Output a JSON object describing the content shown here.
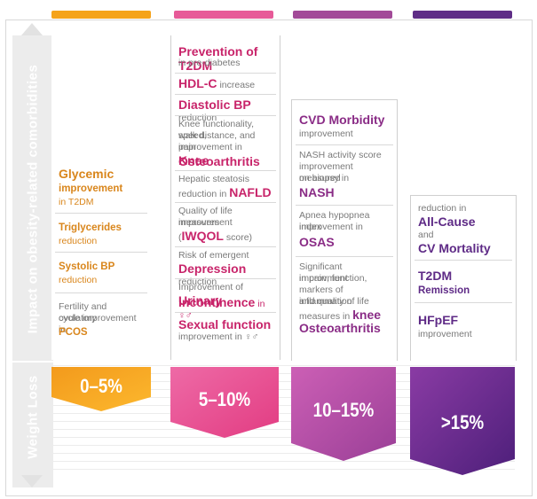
{
  "sidebar": {
    "impact_label": "Impact on obesity-related comorbidities",
    "weight_loss_label": "Weight Loss"
  },
  "colors": {
    "orange": "#f5a31a",
    "pink": "#e44c90",
    "magenta": "#a6499b",
    "purple": "#5e2d86"
  },
  "columns": [
    {
      "range": "0–5%",
      "items": [
        {
          "pre": "",
          "bold": "Glycemic",
          "post": ""
        },
        {
          "pre": "",
          "bold": "improvement",
          "post": ""
        },
        {
          "pre": "",
          "bold": "",
          "post": "in T2DM"
        },
        {
          "pre": "",
          "bold": "Triglycerides",
          "post": ""
        },
        {
          "pre": "",
          "bold": "",
          "post": "reduction"
        },
        {
          "pre": "",
          "bold": "Systolic BP",
          "post": ""
        },
        {
          "pre": "",
          "bold": "",
          "post": "reduction"
        },
        {
          "pre": "Fertility and ovulatory",
          "bold": "",
          "post": ""
        },
        {
          "pre": "cycle improvement in",
          "bold": "",
          "post": ""
        },
        {
          "pre": "",
          "bold": "PCOS",
          "post": ""
        }
      ]
    },
    {
      "range": "5–10%",
      "items": [
        {
          "bold": "Prevention of T2DM"
        },
        {
          "post": "in pre-diabetes"
        },
        {
          "bold": "HDL-C",
          "post": " increase"
        },
        {
          "bold": "Diastolic BP",
          "post": " reduction"
        },
        {
          "pre": "Knee functionality, speed,"
        },
        {
          "pre": "walk distance, and pain"
        },
        {
          "pre": "improvement in ",
          "bold": "Knee"
        },
        {
          "bold": "Osteoarthritis"
        },
        {
          "pre": "Hepatic steatosis"
        },
        {
          "pre": "reduction in ",
          "bold": "NAFLD"
        },
        {
          "pre": "Quality of life measures"
        },
        {
          "pre": "improvement"
        },
        {
          "pre": "(",
          "bold": "IWQOL",
          "post": " score)"
        },
        {
          "pre": "Risk of emergent"
        },
        {
          "bold": "Depression",
          "post": " reduction"
        },
        {
          "pre": "Improvement of ",
          "bold": "Urinary"
        },
        {
          "bold": "incontinence",
          "post": " in ♀♂"
        },
        {
          "bold": "Sexual function"
        },
        {
          "pre": "improvement in ♀♂"
        }
      ]
    },
    {
      "range": "10–15%",
      "items": [
        {
          "bold": "CVD Morbidity"
        },
        {
          "post": "improvement"
        },
        {
          "pre": "NASH activity score"
        },
        {
          "pre": "improvement measured"
        },
        {
          "pre": "on biopsy in"
        },
        {
          "bold": "NASH"
        },
        {
          "pre": "Apnea hypopnea index"
        },
        {
          "pre": "improvement in"
        },
        {
          "bold": "OSAS"
        },
        {
          "pre": "Significant improvment"
        },
        {
          "pre": "in pain, function,"
        },
        {
          "pre": "markers of inflammation"
        },
        {
          "pre": "and quality of life"
        },
        {
          "pre": "measures in ",
          "bold": "knee"
        },
        {
          "bold": "Osteoarthritis"
        }
      ]
    },
    {
      "range": ">15%",
      "items": [
        {
          "pre": "reduction in"
        },
        {
          "bold": "All-Cause"
        },
        {
          "pre": "and"
        },
        {
          "bold": "CV Mortality"
        },
        {
          "bold": "T2DM"
        },
        {
          "bold": "Remission"
        },
        {
          "bold": "HFpEF"
        },
        {
          "post": "improvement"
        }
      ]
    }
  ]
}
